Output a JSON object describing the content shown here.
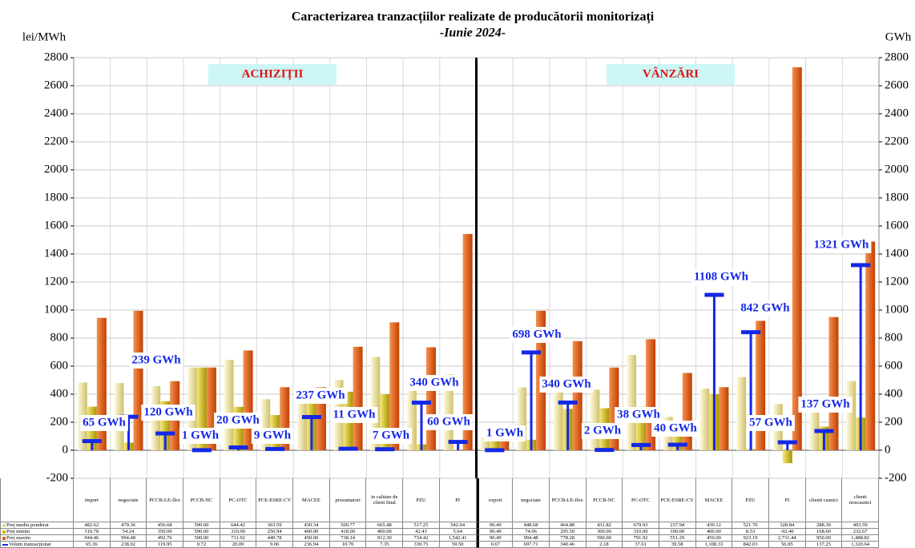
{
  "chart_data": {
    "type": "bar",
    "title": "Caracterizarea tranzacțiilor realizate de producătorii monitorizați",
    "subtitle": "-Iunie 2024-",
    "y_label": "lei/MWh",
    "y2_label": "GWh",
    "annotations": [
      "ACHIZIȚII",
      "VÂNZĂRI"
    ],
    "categories": [
      "import",
      "negociate",
      "PCCB-LE-flex",
      "PCCB-NC",
      "PC-OTC",
      "PCE-ESRE-CV",
      "MACEE",
      "prosumatori",
      "in calitate de client final",
      "PZU",
      "PI",
      "export",
      "negociate",
      "PCCB-LE-flex",
      "PCCB-NC",
      "PC-OTC",
      "PCE-ESRE-CV",
      "MACEE",
      "PZU",
      "PI",
      "clienti casnici",
      "clienti noncasnici"
    ],
    "series": [
      {
        "name": "Preț mediu ponderat",
        "color": "#e6dc8c",
        "values": [
          482.62,
          479.36,
          456.68,
          590.0,
          644.42,
          363.59,
          430.34,
          500.77,
          665.48,
          517.25,
          542.64,
          90.49,
          448.68,
          464.88,
          431.82,
          679.93,
          237.94,
          439.12,
          521.7,
          328.84,
          288.3,
          493.59
        ],
        "value_labels": [
          "482.62",
          "479.36",
          "456.68",
          "590.00",
          "644.42",
          "363.59",
          "430.34",
          "500.77",
          "665.48",
          "517.25",
          "542.64",
          "90.49",
          "448.68",
          "464.88",
          "431.82",
          "679.93",
          "237.94",
          "439.12",
          "521.70",
          "328.84",
          "288.30",
          "493.59"
        ]
      },
      {
        "name": "Preț minim",
        "color": "#d2bc1e",
        "values": [
          310.78,
          54.24,
          350.0,
          590.0,
          310.0,
          250.94,
          400.0,
          418.0,
          400.0,
          42.43,
          5.64,
          90.49,
          74.96,
          295.5,
          300.0,
          310.0,
          100.0,
          400.0,
          8.53,
          -92.4,
          168.6,
          232.67
        ],
        "value_labels": [
          "310.78",
          "54.24",
          "350.00",
          "590.00",
          "310.00",
          "250.94",
          "400.00",
          "418.00",
          "400.00",
          "42.43",
          "5.64",
          "90.49",
          "74.96",
          "295.50",
          "300.00",
          "310.00",
          "100.00",
          "400.00",
          "8.53",
          "-92.40",
          "168.60",
          "232.67"
        ]
      },
      {
        "name": "Preț maxim",
        "color": "#e2611a",
        "values": [
          944.46,
          994.48,
          492.76,
          590.0,
          711.92,
          449.78,
          450.0,
          738.14,
          912.3,
          734.42,
          1542.41,
          90.49,
          994.48,
          778.28,
          590.0,
          791.92,
          551.29,
          450.0,
          923.19,
          2731.44,
          950.0,
          1488.82
        ],
        "value_labels": [
          "944.46",
          "994.48",
          "492.76",
          "590.00",
          "711.92",
          "449.78",
          "450.00",
          "738.14",
          "912.30",
          "734.42",
          "1,542.41",
          "90.49",
          "994.48",
          "778.28",
          "590.00",
          "791.92",
          "551.29",
          "450.00",
          "923.19",
          "2,731.44",
          "950.00",
          "1,488.82"
        ]
      },
      {
        "name": "Volum tranzacționat",
        "color": "#1428e6",
        "axis": "y2",
        "values": [
          65.36,
          238.92,
          119.95,
          0.72,
          20.09,
          9.06,
          236.94,
          10.7,
          7.35,
          339.75,
          59.5,
          0.67,
          697.71,
          340.46,
          2.18,
          37.61,
          39.58,
          1108.33,
          842.03,
          56.95,
          137.25,
          1320.64
        ],
        "table_labels": [
          "65.36",
          "238.92",
          "119.95",
          "0.72",
          "20.09",
          "9.06",
          "236.94",
          "10.70",
          "7.35",
          "339.75",
          "59.50",
          "0.67",
          "697.71",
          "340.46",
          "2.18",
          "37.61",
          "39.58",
          "1,108.33",
          "842.03",
          "56.95",
          "137.25",
          "1,320.64"
        ],
        "value_labels": [
          "65 GWh",
          "239 GWh",
          "120 GWh",
          "1 GWh",
          "20 GWh",
          "9 GWh",
          "237 GWh",
          "11 GWh",
          "7 GWh",
          "340 GWh",
          "60 GWh",
          "1 GWh",
          "698 GWh",
          "340 GWh",
          "2 GWh",
          "38 GWh",
          "40 GWh",
          "1108 GWh",
          "842 GWh",
          "57 GWh",
          "137 GWh",
          "1321 GWh"
        ]
      }
    ],
    "ylim": [
      -200,
      2800
    ],
    "yticks": [
      -200,
      0,
      200,
      400,
      600,
      800,
      1000,
      1200,
      1400,
      1600,
      1800,
      2000,
      2200,
      2400,
      2600,
      2800
    ],
    "y2lim": [
      -200,
      2800
    ],
    "y2ticks": [
      -200,
      0,
      200,
      400,
      600,
      800,
      1000,
      1200,
      1400,
      1600,
      1800,
      2000,
      2200,
      2400,
      2600,
      2800
    ],
    "grid": true
  }
}
